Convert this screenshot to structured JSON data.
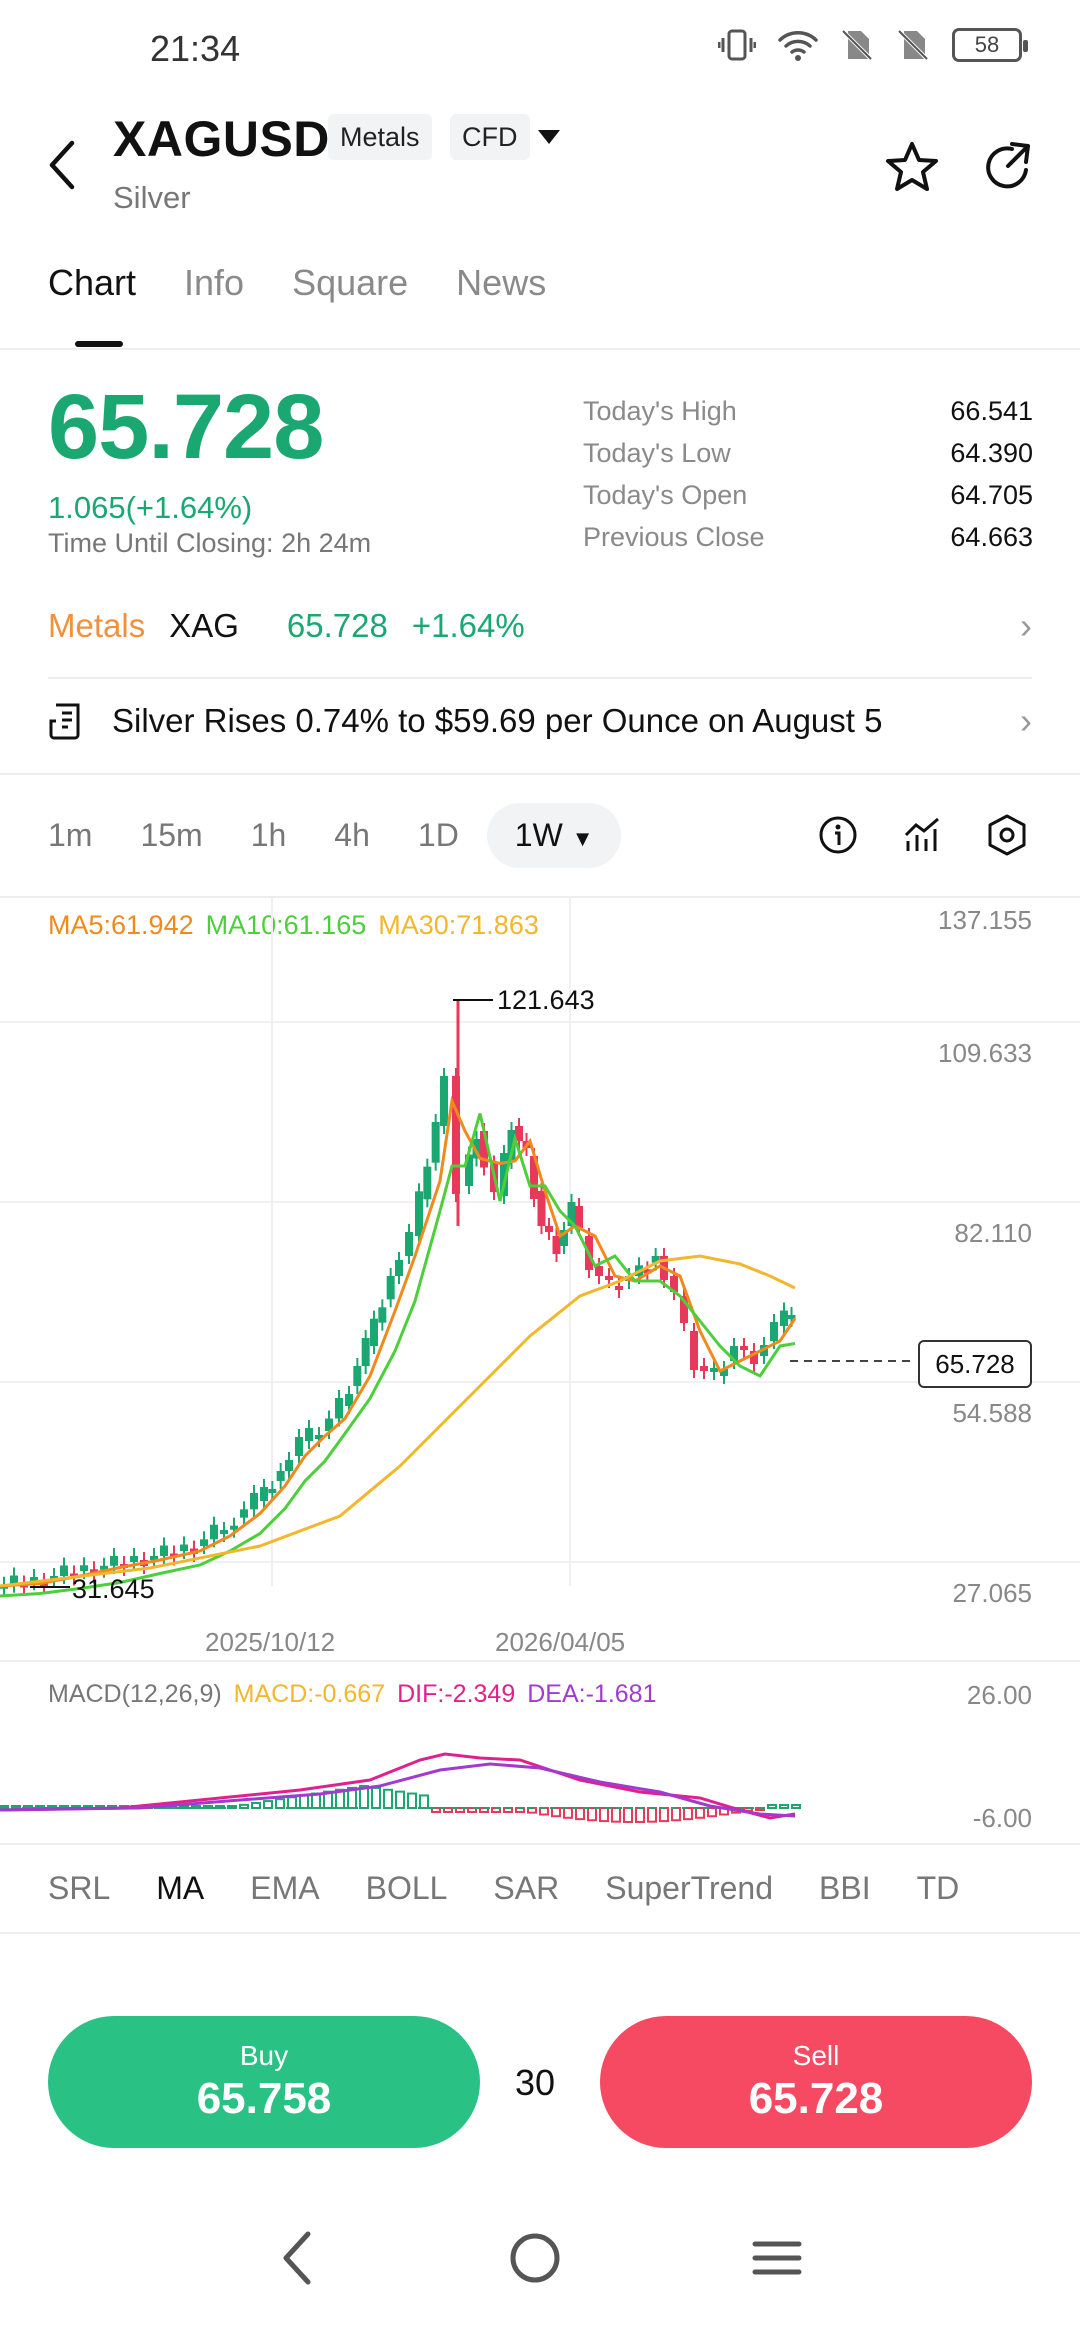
{
  "status_bar": {
    "time": "21:34",
    "battery": "58"
  },
  "header": {
    "symbol": "XAGUSD",
    "tags": [
      "Metals",
      "CFD"
    ],
    "name": "Silver"
  },
  "tabs": [
    {
      "label": "Chart",
      "active": true
    },
    {
      "label": "Info"
    },
    {
      "label": "Square"
    },
    {
      "label": "News"
    }
  ],
  "quote": {
    "price": "65.728",
    "change": "1.065(+1.64%)",
    "closing_label": "Time Until Closing:",
    "closing_value": "2h 24m",
    "stats": [
      {
        "label": "Today's High",
        "value": "66.541"
      },
      {
        "label": "Today's Low",
        "value": "64.390"
      },
      {
        "label": "Today's Open",
        "value": "64.705"
      },
      {
        "label": "Previous Close",
        "value": "64.663"
      }
    ]
  },
  "related": {
    "category": "Metals",
    "code": "XAG",
    "price": "65.728",
    "change": "+1.64%"
  },
  "news": {
    "headline": "Silver Rises 0.74% to $59.69 per Ounce on August 5"
  },
  "timeframes": [
    "1m",
    "15m",
    "1h",
    "4h",
    "1D",
    "1W"
  ],
  "active_timeframe": "1W",
  "ma_legend": {
    "ma5": "MA5:61.942",
    "ma10": "MA10:61.165",
    "ma30": "MA30:71.863"
  },
  "chart": {
    "y_labels": [
      "137.155",
      "109.633",
      "82.110",
      "54.588",
      "27.065"
    ],
    "x_labels": [
      "2025/10/12",
      "2026/04/05"
    ],
    "high_marker": "121.643",
    "low_marker": "31.645",
    "current_price_tag": "65.728"
  },
  "macd": {
    "title": "MACD(12,26,9)",
    "macd": "MACD:-0.667",
    "dif": "DIF:-2.349",
    "dea": "DEA:-1.681",
    "y_top": "26.00",
    "y_bottom": "-6.00"
  },
  "indicators": [
    "SRL",
    "MA",
    "EMA",
    "BOLL",
    "SAR",
    "SuperTrend",
    "BBI",
    "TD"
  ],
  "active_indicator": "MA",
  "trade": {
    "buy_label": "Buy",
    "buy_price": "65.758",
    "quantity": "30",
    "sell_label": "Sell",
    "sell_price": "65.728"
  },
  "colors": {
    "up": "#1aa772",
    "down": "#e8395a",
    "metals": "#f0913d",
    "ma5": "#f08a1c",
    "ma10": "#4ccf3a",
    "ma30": "#f2b72c",
    "buy_button": "#2ac185",
    "sell_button": "#f54a62",
    "dif": "#e0208c",
    "dea": "#a23ad0"
  },
  "icons": [
    "back-arrow-icon",
    "dropdown-caret-icon",
    "star-icon",
    "share-icon",
    "news-doc-icon",
    "info-icon",
    "indicator-icon",
    "settings-icon",
    "nav-back-icon",
    "nav-home-icon",
    "nav-menu-icon"
  ]
}
